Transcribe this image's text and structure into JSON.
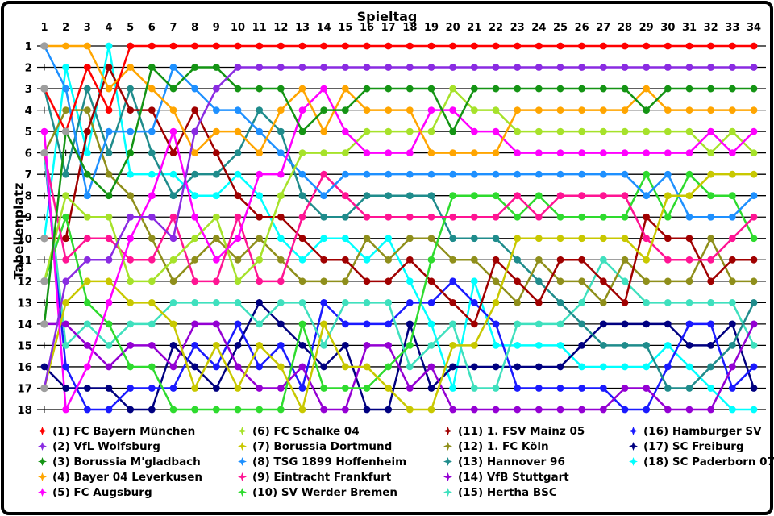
{
  "chart_data": {
    "type": "line",
    "title": "Spieltag",
    "x_axis": {
      "label": "Spieltag",
      "ticks": [
        1,
        2,
        3,
        4,
        5,
        6,
        7,
        8,
        9,
        10,
        11,
        12,
        13,
        14,
        15,
        16,
        17,
        18,
        19,
        20,
        21,
        22,
        23,
        24,
        25,
        26,
        27,
        28,
        29,
        30,
        31,
        32,
        33,
        34
      ]
    },
    "y_axis": {
      "label": "Tabellenplatz",
      "ticks": [
        1,
        2,
        3,
        4,
        5,
        6,
        7,
        8,
        9,
        10,
        11,
        12,
        13,
        14,
        15,
        16,
        17,
        18
      ]
    },
    "ylim": [
      1,
      18
    ],
    "grid": "horizontal",
    "legend_position": "bottom",
    "tie_dot_color": "#9E9E9E",
    "teams": [
      {
        "rank": 1,
        "short": "fcb",
        "name": "FC Bayern München",
        "label": "(1) FC Bayern München",
        "color": "#FF0000",
        "positions": [
          3,
          5,
          2,
          4,
          1,
          1,
          1,
          1,
          1,
          1,
          1,
          1,
          1,
          1,
          1,
          1,
          1,
          1,
          1,
          1,
          1,
          1,
          1,
          1,
          1,
          1,
          1,
          1,
          1,
          1,
          1,
          1,
          1,
          1
        ]
      },
      {
        "rank": 2,
        "short": "wob",
        "name": "VfL Wolfsburg",
        "label": "(2) VfL Wolfsburg",
        "color": "#8A2BE2",
        "positions": [
          17,
          12,
          11,
          11,
          9,
          9,
          10,
          5,
          3,
          2,
          2,
          2,
          2,
          2,
          2,
          2,
          2,
          2,
          2,
          2,
          2,
          2,
          2,
          2,
          2,
          2,
          2,
          2,
          2,
          2,
          2,
          2,
          2,
          2
        ]
      },
      {
        "rank": 3,
        "short": "bmg",
        "name": "Borussia M'gladbach",
        "label": "(3) Borussia M'gladbach",
        "color": "#149414",
        "positions": [
          14,
          5,
          7,
          8,
          6,
          2,
          3,
          2,
          2,
          3,
          3,
          3,
          5,
          4,
          4,
          3,
          3,
          3,
          3,
          5,
          3,
          3,
          3,
          3,
          3,
          3,
          3,
          3,
          4,
          3,
          3,
          3,
          3,
          3
        ]
      },
      {
        "rank": 4,
        "short": "b04",
        "name": "Bayer 04 Leverkusen",
        "label": "(4) Bayer 04 Leverkusen",
        "color": "#FFA500",
        "positions": [
          1,
          1,
          1,
          3,
          2,
          3,
          4,
          6,
          5,
          5,
          6,
          4,
          3,
          5,
          3,
          4,
          4,
          4,
          6,
          6,
          6,
          6,
          4,
          4,
          4,
          4,
          4,
          4,
          3,
          4,
          4,
          4,
          4,
          4
        ]
      },
      {
        "rank": 5,
        "short": "fca",
        "name": "FC Augsburg",
        "label": "(5) FC Augsburg",
        "color": "#FF00FF",
        "positions": [
          5,
          18,
          16,
          13,
          10,
          8,
          5,
          9,
          11,
          10,
          7,
          7,
          4,
          3,
          5,
          6,
          6,
          6,
          4,
          4,
          5,
          5,
          6,
          6,
          6,
          6,
          6,
          6,
          6,
          6,
          6,
          5,
          6,
          5
        ]
      },
      {
        "rank": 6,
        "short": "s04",
        "name": "FC Schalke 04",
        "label": "(6) FC Schalke 04",
        "color": "#A6E22A",
        "positions": [
          12,
          8,
          9,
          9,
          12,
          12,
          11,
          10,
          9,
          12,
          11,
          8,
          6,
          6,
          6,
          5,
          5,
          5,
          5,
          3,
          4,
          4,
          5,
          5,
          5,
          5,
          5,
          5,
          5,
          5,
          5,
          6,
          5,
          6
        ]
      },
      {
        "rank": 7,
        "short": "bvb",
        "name": "Borussia Dortmund",
        "label": "(7) Borussia Dortmund",
        "color": "#C8C800",
        "positions": [
          17,
          13,
          12,
          12,
          13,
          13,
          14,
          17,
          15,
          17,
          15,
          16,
          18,
          14,
          16,
          16,
          17,
          18,
          18,
          15,
          15,
          13,
          10,
          10,
          10,
          10,
          10,
          10,
          11,
          8,
          8,
          7,
          7,
          7
        ]
      },
      {
        "rank": 8,
        "short": "tsg",
        "name": "TSG 1899 Hoffenheim",
        "label": "(8) TSG 1899 Hoffenheim",
        "color": "#1E90FF",
        "positions": [
          1,
          3,
          8,
          5,
          5,
          5,
          2,
          3,
          4,
          4,
          5,
          6,
          7,
          8,
          7,
          7,
          7,
          7,
          7,
          7,
          7,
          7,
          7,
          7,
          7,
          7,
          7,
          7,
          8,
          7,
          9,
          9,
          9,
          8
        ]
      },
      {
        "rank": 9,
        "short": "sge",
        "name": "Eintracht Frankfurt",
        "label": "(9) Eintracht Frankfurt",
        "color": "#FF1493",
        "positions": [
          6,
          11,
          10,
          10,
          11,
          11,
          9,
          12,
          12,
          9,
          12,
          12,
          9,
          7,
          8,
          9,
          9,
          9,
          9,
          9,
          9,
          9,
          8,
          9,
          8,
          8,
          8,
          8,
          10,
          11,
          11,
          11,
          10,
          9
        ]
      },
      {
        "rank": 10,
        "short": "svw",
        "name": "SV Werder Bremen",
        "label": "(10) SV Werder Bremen",
        "color": "#2EDB2E",
        "positions": [
          12,
          9,
          13,
          14,
          16,
          16,
          18,
          18,
          18,
          18,
          18,
          18,
          14,
          17,
          17,
          17,
          16,
          15,
          11,
          8,
          8,
          8,
          9,
          8,
          9,
          9,
          9,
          9,
          7,
          9,
          7,
          8,
          8,
          10
        ]
      },
      {
        "rank": 11,
        "short": "m05",
        "name": "1. FSV Mainz 05",
        "label": "(11) 1. FSV Mainz 05",
        "color": "#A00000",
        "positions": [
          10,
          10,
          5,
          2,
          4,
          4,
          6,
          4,
          6,
          8,
          9,
          9,
          10,
          11,
          11,
          12,
          12,
          11,
          12,
          13,
          14,
          11,
          12,
          13,
          11,
          11,
          12,
          13,
          9,
          10,
          10,
          12,
          11,
          11
        ]
      },
      {
        "rank": 12,
        "short": "koe",
        "name": "1. FC Köln",
        "label": "(12) 1. FC Köln",
        "color": "#8F8F1B",
        "positions": [
          6,
          4,
          4,
          7,
          8,
          10,
          12,
          11,
          10,
          11,
          10,
          11,
          12,
          12,
          12,
          10,
          11,
          10,
          10,
          11,
          11,
          12,
          13,
          11,
          12,
          12,
          13,
          11,
          12,
          12,
          12,
          10,
          12,
          12
        ]
      },
      {
        "rank": 13,
        "short": "h96",
        "name": "Hannover 96",
        "label": "(13) Hannover 96",
        "color": "#1F8C8C",
        "positions": [
          3,
          7,
          3,
          6,
          3,
          6,
          8,
          7,
          7,
          6,
          4,
          5,
          8,
          9,
          9,
          8,
          8,
          8,
          8,
          10,
          10,
          10,
          11,
          12,
          13,
          14,
          15,
          15,
          15,
          17,
          17,
          16,
          15,
          13
        ]
      },
      {
        "rank": 14,
        "short": "vfb",
        "name": "VfB Stuttgart",
        "label": "(14) VfB Stuttgart",
        "color": "#9400D3",
        "positions": [
          14,
          14,
          15,
          16,
          15,
          15,
          16,
          14,
          14,
          16,
          17,
          17,
          16,
          18,
          18,
          15,
          15,
          17,
          16,
          18,
          18,
          18,
          18,
          18,
          18,
          18,
          18,
          17,
          17,
          18,
          18,
          18,
          16,
          14
        ]
      },
      {
        "rank": 15,
        "short": "bsc",
        "name": "Hertha BSC",
        "label": "(15) Hertha BSC",
        "color": "#3FE0BE",
        "positions": [
          6,
          15,
          14,
          15,
          14,
          14,
          13,
          13,
          13,
          13,
          14,
          13,
          13,
          15,
          13,
          13,
          13,
          16,
          15,
          14,
          17,
          17,
          14,
          14,
          14,
          13,
          11,
          12,
          13,
          13,
          13,
          13,
          13,
          15
        ]
      },
      {
        "rank": 16,
        "short": "hsv",
        "name": "Hamburger SV",
        "label": "(16) Hamburger SV",
        "color": "#1A1AFF",
        "positions": [
          6,
          16,
          18,
          18,
          17,
          17,
          17,
          15,
          16,
          14,
          16,
          15,
          17,
          13,
          14,
          14,
          14,
          13,
          13,
          12,
          13,
          14,
          17,
          17,
          17,
          17,
          17,
          18,
          18,
          16,
          14,
          14,
          17,
          16
        ]
      },
      {
        "rank": 17,
        "short": "scf",
        "name": "SC Freiburg",
        "label": "(17) SC Freiburg",
        "color": "#000080",
        "positions": [
          16,
          17,
          17,
          17,
          18,
          18,
          15,
          16,
          17,
          15,
          13,
          14,
          15,
          16,
          15,
          18,
          18,
          14,
          17,
          16,
          16,
          16,
          16,
          16,
          16,
          15,
          14,
          14,
          14,
          14,
          15,
          15,
          14,
          17
        ]
      },
      {
        "rank": 18,
        "short": "scp",
        "name": "SC Paderborn 07",
        "label": "(18) SC Paderborn 07",
        "color": "#00FFFF",
        "positions": [
          10,
          2,
          6,
          1,
          7,
          7,
          7,
          8,
          8,
          7,
          8,
          10,
          11,
          10,
          10,
          11,
          10,
          12,
          14,
          17,
          12,
          15,
          15,
          15,
          15,
          16,
          16,
          16,
          16,
          15,
          16,
          17,
          18,
          18
        ]
      }
    ]
  }
}
